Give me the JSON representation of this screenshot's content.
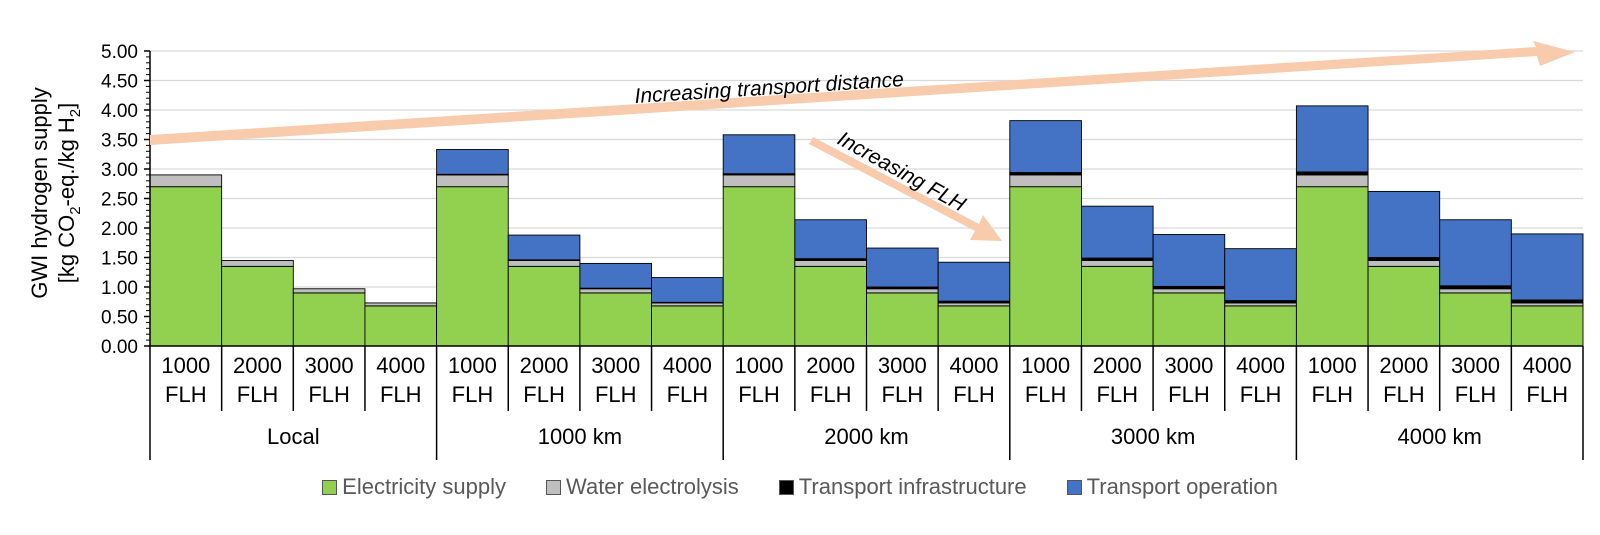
{
  "chart_data": {
    "type": "bar",
    "stacked": true,
    "ylabel_line1": "GWI hydrogen supply",
    "ylabel_line2_parts": [
      "[kg CO",
      "2",
      "-eq./kg H",
      "2",
      "]"
    ],
    "ylim": [
      0,
      5
    ],
    "yticks": [
      "0.00",
      "0.50",
      "1.00",
      "1.50",
      "2.00",
      "2.50",
      "3.00",
      "3.50",
      "4.00",
      "4.50",
      "5.00"
    ],
    "grid": true,
    "legend_position": "bottom",
    "groups": [
      {
        "label": "Local",
        "categories": [
          [
            "1000",
            "FLH"
          ],
          [
            "2000",
            "FLH"
          ],
          [
            "3000",
            "FLH"
          ],
          [
            "4000",
            "FLH"
          ]
        ]
      },
      {
        "label": "1000 km",
        "categories": [
          [
            "1000",
            "FLH"
          ],
          [
            "2000",
            "FLH"
          ],
          [
            "3000",
            "FLH"
          ],
          [
            "4000",
            "FLH"
          ]
        ]
      },
      {
        "label": "2000 km",
        "categories": [
          [
            "1000",
            "FLH"
          ],
          [
            "2000",
            "FLH"
          ],
          [
            "3000",
            "FLH"
          ],
          [
            "4000",
            "FLH"
          ]
        ]
      },
      {
        "label": "3000 km",
        "categories": [
          [
            "1000",
            "FLH"
          ],
          [
            "2000",
            "FLH"
          ],
          [
            "3000",
            "FLH"
          ],
          [
            "4000",
            "FLH"
          ]
        ]
      },
      {
        "label": "4000 km",
        "categories": [
          [
            "1000",
            "FLH"
          ],
          [
            "2000",
            "FLH"
          ],
          [
            "3000",
            "FLH"
          ],
          [
            "4000",
            "FLH"
          ]
        ]
      }
    ],
    "series": [
      {
        "name": "Electricity supply",
        "color": "#92d050",
        "values": [
          2.7,
          1.35,
          0.9,
          0.68,
          2.7,
          1.35,
          0.9,
          0.68,
          2.7,
          1.35,
          0.9,
          0.68,
          2.7,
          1.35,
          0.9,
          0.68,
          2.7,
          1.35,
          0.9,
          0.68
        ]
      },
      {
        "name": "Water electrolysis",
        "color": "#bfbfbf",
        "values": [
          0.2,
          0.1,
          0.07,
          0.05,
          0.2,
          0.1,
          0.07,
          0.05,
          0.2,
          0.1,
          0.07,
          0.05,
          0.2,
          0.1,
          0.07,
          0.05,
          0.2,
          0.1,
          0.07,
          0.05
        ]
      },
      {
        "name": "Transport infrastructure",
        "color": "#000000",
        "values": [
          0,
          0,
          0,
          0,
          0.01,
          0.01,
          0.01,
          0.01,
          0.02,
          0.03,
          0.03,
          0.03,
          0.04,
          0.04,
          0.04,
          0.04,
          0.05,
          0.05,
          0.05,
          0.05
        ]
      },
      {
        "name": "Transport operation",
        "color": "#4472c4",
        "values": [
          0,
          0,
          0,
          0,
          0.42,
          0.42,
          0.42,
          0.42,
          0.66,
          0.66,
          0.66,
          0.66,
          0.88,
          0.88,
          0.88,
          0.88,
          1.12,
          1.12,
          1.12,
          1.12
        ]
      }
    ],
    "annotations": [
      "Increasing transport distance",
      "Increasing FLH"
    ],
    "annotation_color": "#f8cbad"
  }
}
